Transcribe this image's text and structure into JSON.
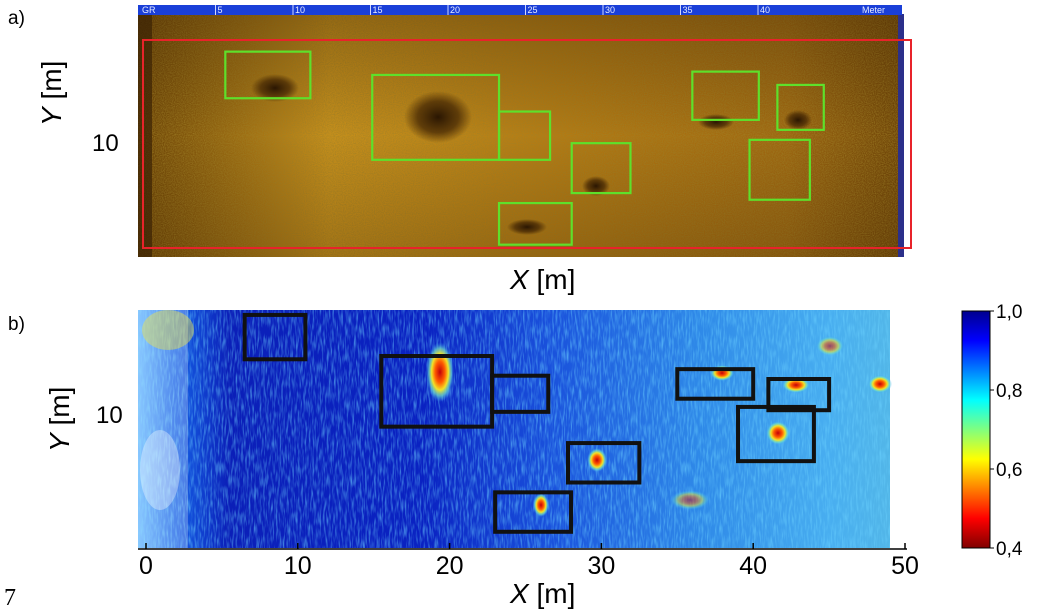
{
  "panel_a": {
    "letter": "a)",
    "ruler_labels": [
      "GR",
      "5",
      "10",
      "15",
      "20",
      "25",
      "30",
      "35",
      "40",
      "Meter"
    ],
    "y_axis": {
      "var": "Y",
      "unit": "[m]",
      "tick": "10"
    },
    "x_axis": {
      "var": "X",
      "unit": "[m]"
    },
    "colors": {
      "region_box": "#e8232a",
      "target_box": "#5ee02b",
      "ruler_bar": "#1a3fd8"
    }
  },
  "panel_b": {
    "letter": "b)",
    "y_axis": {
      "var": "Y",
      "unit": "[m]",
      "tick": "10"
    },
    "x_axis": {
      "var": "X",
      "unit": "[m]",
      "ticks": [
        "0",
        "10",
        "20",
        "30",
        "40",
        "50"
      ]
    },
    "colorbar": {
      "ticks": [
        "1,0",
        "0,8",
        "0,6",
        "0,4"
      ],
      "colormap": "jet-reversed"
    },
    "colors": {
      "target_box": "#111111"
    }
  },
  "chart_data": [
    {
      "type": "image",
      "panel": "a",
      "xlabel": "X [m]",
      "ylabel": "Y [m]",
      "ruler_ticks": [
        5,
        10,
        15,
        20,
        25,
        30,
        35,
        40
      ],
      "y_ticks": [
        10
      ],
      "region_box": {
        "x": [
          0,
          48.5
        ],
        "y": [
          3,
          15.5
        ]
      },
      "target_boxes": [
        {
          "x": [
            5,
            10.5
          ],
          "y": [
            12,
            14.8
          ]
        },
        {
          "x": [
            14.5,
            22.7
          ],
          "y": [
            8.3,
            13.4
          ]
        },
        {
          "x": [
            22.7,
            26
          ],
          "y": [
            8.3,
            11.2
          ]
        },
        {
          "x": [
            27.4,
            31.2
          ],
          "y": [
            6.3,
            9.3
          ]
        },
        {
          "x": [
            22.7,
            27.4
          ],
          "y": [
            3.2,
            5.7
          ]
        },
        {
          "x": [
            35.2,
            39.5
          ],
          "y": [
            10.7,
            13.6
          ]
        },
        {
          "x": [
            40.7,
            43.7
          ],
          "y": [
            10.1,
            12.8
          ]
        },
        {
          "x": [
            38.9,
            42.8
          ],
          "y": [
            5.9,
            9.5
          ]
        }
      ]
    },
    {
      "type": "heatmap",
      "panel": "b",
      "xlabel": "X [m]",
      "ylabel": "Y [m]",
      "xlim": [
        0,
        50
      ],
      "x_ticks": [
        0,
        10,
        20,
        30,
        40,
        50
      ],
      "y_ticks": [
        10
      ],
      "colorbar_range": [
        0.4,
        1.0
      ],
      "colorbar_ticks": [
        1.0,
        0.8,
        0.6,
        0.4
      ],
      "target_boxes": [
        {
          "x": [
            6.5,
            10.5
          ],
          "y": [
            13.5,
            16.2
          ]
        },
        {
          "x": [
            15.5,
            22.8
          ],
          "y": [
            9.4,
            13.7
          ]
        },
        {
          "x": [
            22.8,
            26.5
          ],
          "y": [
            10.3,
            12.5
          ]
        },
        {
          "x": [
            27.8,
            32.5
          ],
          "y": [
            6.0,
            8.4
          ]
        },
        {
          "x": [
            23,
            28
          ],
          "y": [
            3.0,
            5.4
          ]
        },
        {
          "x": [
            35,
            40
          ],
          "y": [
            11.1,
            12.9
          ]
        },
        {
          "x": [
            41,
            45
          ],
          "y": [
            10.4,
            12.3
          ]
        },
        {
          "x": [
            39,
            44
          ],
          "y": [
            7.3,
            10.6
          ]
        }
      ]
    }
  ],
  "page_number": "7"
}
